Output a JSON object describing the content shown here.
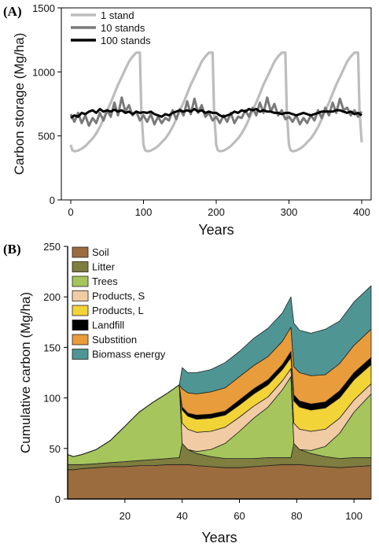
{
  "chart_data": [
    {
      "panel_label": "(A)",
      "type": "line",
      "xlabel": "Years",
      "ylabel": "Carbon storage (Mg/ha)",
      "xlim": [
        0,
        400
      ],
      "ylim": [
        0,
        1500
      ],
      "xticks": [
        0,
        100,
        200,
        300,
        400
      ],
      "yticks": [
        0,
        500,
        1000,
        1500
      ],
      "legend_position": "top-left",
      "grid": false,
      "series": [
        {
          "name": "1 stand",
          "color": "#bdbdbd",
          "x": [
            0,
            2,
            5,
            10,
            15,
            20,
            25,
            30,
            35,
            40,
            45,
            50,
            55,
            60,
            65,
            70,
            75,
            80,
            85,
            90,
            95,
            97,
            100,
            102,
            105,
            110,
            115,
            120,
            125,
            130,
            135,
            140,
            145,
            150,
            155,
            160,
            165,
            170,
            175,
            180,
            185,
            190,
            195,
            197,
            200,
            202,
            205,
            210,
            215,
            220,
            225,
            230,
            235,
            240,
            245,
            250,
            255,
            260,
            265,
            270,
            275,
            280,
            285,
            290,
            295,
            297,
            300,
            302,
            305,
            310,
            315,
            320,
            325,
            330,
            335,
            340,
            345,
            350,
            355,
            360,
            365,
            370,
            375,
            380,
            385,
            390,
            395,
            397,
            400
          ],
          "y": [
            430,
            390,
            380,
            385,
            400,
            420,
            450,
            480,
            520,
            570,
            630,
            700,
            760,
            830,
            900,
            960,
            1020,
            1080,
            1120,
            1150,
            1150,
            700,
            430,
            390,
            380,
            385,
            400,
            420,
            450,
            480,
            520,
            570,
            630,
            700,
            760,
            830,
            900,
            960,
            1020,
            1080,
            1120,
            1150,
            1150,
            700,
            430,
            390,
            380,
            385,
            400,
            420,
            450,
            480,
            520,
            570,
            630,
            700,
            760,
            830,
            900,
            960,
            1020,
            1080,
            1120,
            1150,
            1150,
            700,
            430,
            390,
            380,
            385,
            400,
            420,
            450,
            480,
            520,
            570,
            630,
            700,
            760,
            830,
            900,
            960,
            1020,
            1080,
            1120,
            1150,
            1150,
            700,
            450
          ]
        },
        {
          "name": "10 stands",
          "color": "#7a7a7a",
          "x": [
            0,
            5,
            10,
            15,
            20,
            25,
            30,
            35,
            40,
            45,
            50,
            55,
            60,
            65,
            70,
            75,
            80,
            85,
            90,
            95,
            100,
            105,
            110,
            115,
            120,
            125,
            130,
            135,
            140,
            145,
            150,
            155,
            160,
            165,
            170,
            175,
            180,
            185,
            190,
            195,
            200,
            205,
            210,
            215,
            220,
            225,
            230,
            235,
            240,
            245,
            250,
            255,
            260,
            265,
            270,
            275,
            280,
            285,
            290,
            295,
            300,
            305,
            310,
            315,
            320,
            325,
            330,
            335,
            340,
            345,
            350,
            355,
            360,
            365,
            370,
            375,
            380,
            385,
            390,
            395,
            400
          ],
          "y": [
            670,
            610,
            680,
            600,
            660,
            580,
            640,
            600,
            680,
            620,
            700,
            650,
            760,
            660,
            800,
            690,
            740,
            660,
            690,
            620,
            660,
            610,
            670,
            590,
            650,
            600,
            640,
            620,
            700,
            630,
            710,
            660,
            770,
            670,
            790,
            680,
            740,
            650,
            680,
            620,
            650,
            600,
            660,
            610,
            680,
            600,
            650,
            640,
            700,
            650,
            720,
            660,
            760,
            680,
            800,
            690,
            750,
            660,
            700,
            630,
            650,
            610,
            660,
            590,
            640,
            600,
            660,
            620,
            700,
            640,
            720,
            660,
            760,
            680,
            790,
            700,
            720,
            660,
            700,
            650,
            690
          ]
        },
        {
          "name": "100 stands",
          "color": "#000000",
          "x": [
            0,
            5,
            10,
            15,
            20,
            25,
            30,
            35,
            40,
            45,
            50,
            55,
            60,
            65,
            70,
            75,
            80,
            85,
            90,
            95,
            100,
            105,
            110,
            115,
            120,
            125,
            130,
            135,
            140,
            145,
            150,
            155,
            160,
            165,
            170,
            175,
            180,
            185,
            190,
            195,
            200,
            205,
            210,
            215,
            220,
            225,
            230,
            235,
            240,
            245,
            250,
            255,
            260,
            265,
            270,
            275,
            280,
            285,
            290,
            295,
            300,
            305,
            310,
            315,
            320,
            325,
            330,
            335,
            340,
            345,
            350,
            355,
            360,
            365,
            370,
            375,
            380,
            385,
            390,
            395,
            400
          ],
          "y": [
            640,
            660,
            650,
            680,
            670,
            690,
            700,
            680,
            710,
            690,
            700,
            690,
            705,
            690,
            700,
            680,
            690,
            670,
            690,
            680,
            685,
            680,
            690,
            670,
            660,
            650,
            670,
            660,
            680,
            690,
            700,
            690,
            700,
            690,
            710,
            690,
            700,
            680,
            690,
            680,
            680,
            660,
            650,
            660,
            670,
            690,
            680,
            700,
            690,
            710,
            700,
            710,
            690,
            700,
            690,
            690,
            680,
            680,
            670,
            680,
            680,
            670,
            660,
            670,
            680,
            670,
            660,
            670,
            680,
            690,
            690,
            690,
            690,
            700,
            700,
            690,
            680,
            690,
            670,
            680,
            660
          ]
        }
      ]
    },
    {
      "panel_label": "(B)",
      "type": "area",
      "stacked": true,
      "xlabel": "Years",
      "ylabel": "Cumulative carbon (Mg/ha)",
      "xlim": [
        0,
        106
      ],
      "ylim": [
        0,
        250
      ],
      "xticks": [
        20,
        40,
        60,
        80,
        100
      ],
      "yticks": [
        0,
        50,
        100,
        150,
        200,
        250
      ],
      "legend_position": "top-left",
      "grid": false,
      "x": [
        0,
        2,
        5,
        10,
        15,
        20,
        25,
        30,
        35,
        39,
        40,
        42,
        45,
        50,
        55,
        60,
        65,
        70,
        75,
        78,
        79,
        81,
        85,
        90,
        95,
        100,
        106
      ],
      "series": [
        {
          "name": "Soil",
          "color": "#9b6c3e",
          "values": [
            29,
            29,
            30,
            31,
            32,
            32,
            33,
            33,
            34,
            34,
            34,
            34,
            33,
            32,
            31,
            31,
            32,
            33,
            34,
            34,
            34,
            34,
            33,
            32,
            31,
            32,
            33
          ]
        },
        {
          "name": "Litter",
          "color": "#7f7d3f",
          "values": [
            5,
            5,
            4,
            4,
            4,
            5,
            5,
            6,
            6,
            7,
            21,
            15,
            12,
            10,
            9,
            9,
            8,
            8,
            7,
            7,
            21,
            15,
            12,
            10,
            9,
            9,
            8
          ]
        },
        {
          "name": "Trees",
          "color": "#a6c55d",
          "values": [
            10,
            8,
            10,
            14,
            22,
            35,
            48,
            57,
            65,
            72,
            0,
            0,
            2,
            7,
            15,
            27,
            40,
            50,
            67,
            80,
            0,
            0,
            3,
            10,
            25,
            45,
            63
          ]
        },
        {
          "name": "Products, S",
          "color": "#f1cba3",
          "values": [
            0,
            0,
            0,
            0,
            0,
            0,
            0,
            0,
            0,
            0,
            20,
            20,
            19,
            18,
            16,
            14,
            12,
            10,
            9,
            8,
            20,
            20,
            19,
            17,
            15,
            12,
            10
          ]
        },
        {
          "name": "Products, L",
          "color": "#f2d338",
          "values": [
            0,
            0,
            0,
            0,
            0,
            0,
            0,
            0,
            0,
            0,
            13,
            13,
            13,
            13,
            12,
            12,
            12,
            12,
            11,
            11,
            22,
            22,
            21,
            21,
            20,
            20,
            19
          ]
        },
        {
          "name": "Landfill",
          "color": "#000000",
          "values": [
            0,
            0,
            0,
            0,
            0,
            0,
            0,
            0,
            0,
            0,
            3,
            3,
            4,
            4,
            4,
            5,
            5,
            5,
            5,
            6,
            6,
            6,
            6,
            6,
            7,
            7,
            7
          ]
        },
        {
          "name": "Substition",
          "color": "#e89c3b",
          "values": [
            0,
            0,
            0,
            0,
            0,
            0,
            0,
            0,
            0,
            0,
            18,
            20,
            21,
            22,
            23,
            23,
            23,
            23,
            23,
            24,
            28,
            28,
            28,
            27,
            27,
            27,
            28
          ]
        },
        {
          "name": "Biomass energy",
          "color": "#4f9594",
          "values": [
            0,
            0,
            0,
            0,
            0,
            0,
            0,
            0,
            0,
            0,
            21,
            20,
            21,
            22,
            25,
            25,
            27,
            28,
            28,
            30,
            43,
            42,
            42,
            45,
            42,
            43,
            43
          ]
        }
      ]
    }
  ]
}
